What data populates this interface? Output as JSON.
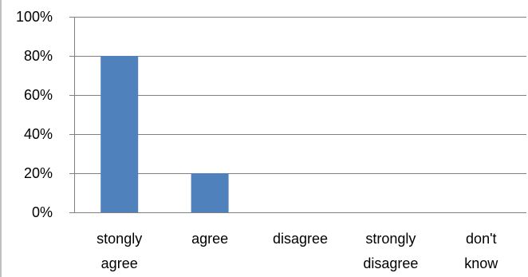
{
  "chart_data": {
    "type": "bar",
    "categories": [
      [
        "stongly",
        "agree"
      ],
      [
        "agree"
      ],
      [
        "disagree"
      ],
      [
        "strongly",
        "disagree"
      ],
      [
        "don't",
        "know"
      ]
    ],
    "values": [
      80,
      20,
      0,
      0,
      0
    ],
    "y_tick_labels": [
      "0%",
      "20%",
      "40%",
      "60%",
      "80%",
      "100%"
    ],
    "y_ticks": [
      0,
      20,
      40,
      60,
      80,
      100
    ],
    "ylim": [
      0,
      100
    ],
    "title": "",
    "xlabel": "",
    "ylabel": "",
    "grid": true,
    "legend": "none",
    "colors": {
      "bar": "#4F81BD",
      "grid": "#808080",
      "axis": "#808080",
      "frame": "#808080"
    }
  }
}
